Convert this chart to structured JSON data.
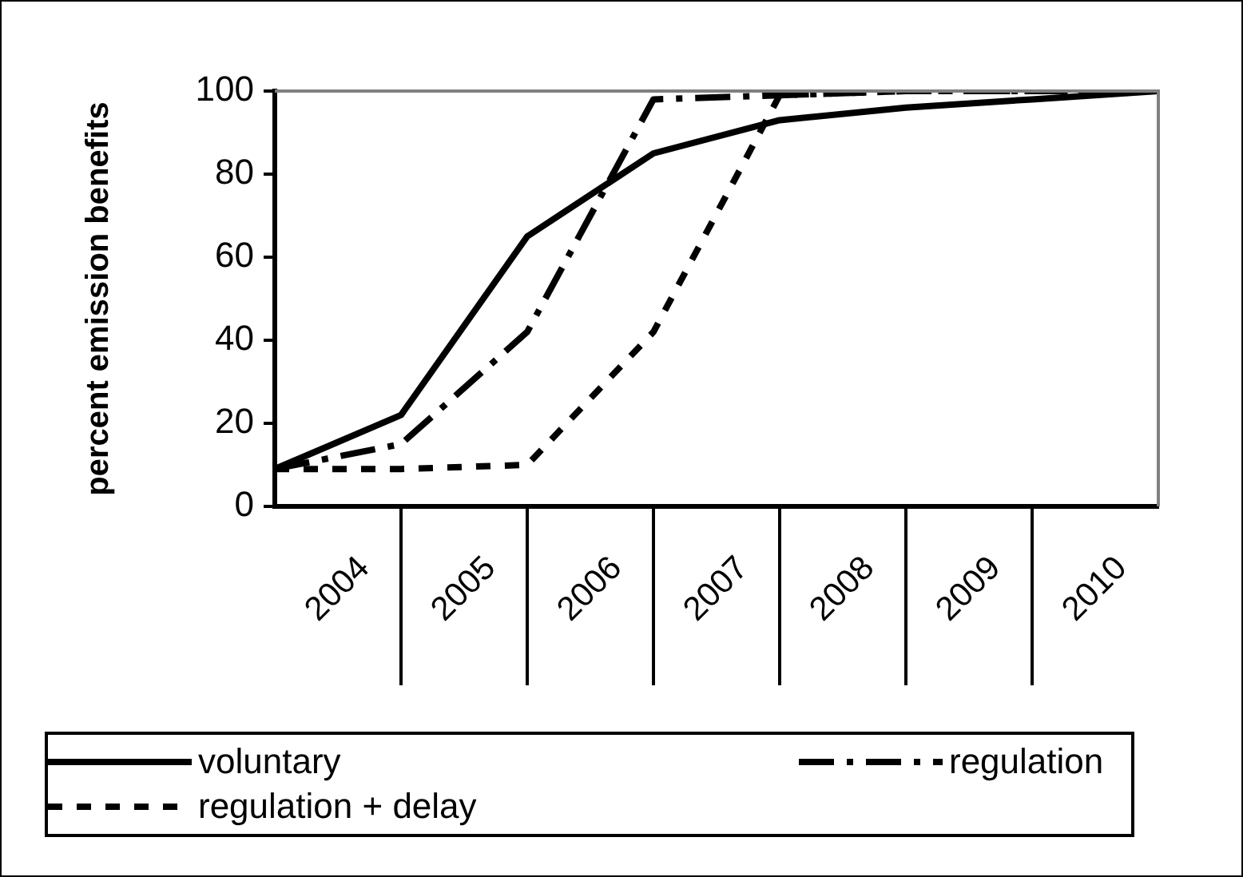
{
  "chart_data": {
    "type": "line",
    "ylabel": "percent emission benefits",
    "x": [
      2003.5,
      2004.5,
      2005.5,
      2006.5,
      2007.5,
      2008.5,
      2009.5,
      2010.5
    ],
    "xlim": [
      2003.5,
      2010.5
    ],
    "xticks": [
      {
        "value": 2004,
        "label": "2004"
      },
      {
        "value": 2004.5,
        "label": null
      },
      {
        "value": 2005,
        "label": "2005"
      },
      {
        "value": 2005.5,
        "label": null
      },
      {
        "value": 2006,
        "label": "2006"
      },
      {
        "value": 2006.5,
        "label": null
      },
      {
        "value": 2007,
        "label": "2007"
      },
      {
        "value": 2007.5,
        "label": null
      },
      {
        "value": 2008,
        "label": "2008"
      },
      {
        "value": 2008.5,
        "label": null
      },
      {
        "value": 2009,
        "label": "2009"
      },
      {
        "value": 2009.5,
        "label": null
      },
      {
        "value": 2010,
        "label": "2010"
      }
    ],
    "ylim": [
      0,
      100
    ],
    "yticks": [
      0,
      20,
      40,
      60,
      80,
      100
    ],
    "series": [
      {
        "name": "voluntary",
        "color": "#000000",
        "line_style": "solid",
        "values": [
          9,
          22,
          65,
          85,
          93,
          96,
          98,
          100
        ]
      },
      {
        "name": "regulation",
        "color": "#000000",
        "line_style": "dashed",
        "values": [
          9,
          15,
          42,
          98,
          99,
          100,
          100,
          100
        ]
      },
      {
        "name": "regulation + delay",
        "color": "#000000",
        "line_style": "dotted",
        "values": [
          9,
          9,
          10,
          42,
          99,
          100,
          100,
          100
        ]
      }
    ],
    "grid": false,
    "legend": "bottom",
    "marker": "none"
  }
}
